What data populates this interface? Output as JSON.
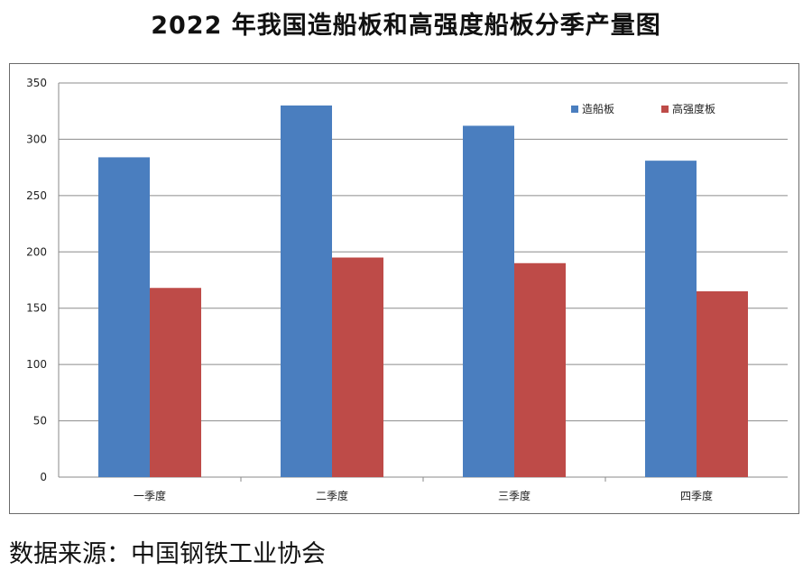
{
  "title": "2022 年我国造船板和高强度船板分季产量图",
  "source": "数据来源：中国钢铁工业协会",
  "chart_data": {
    "type": "bar",
    "categories": [
      "一季度",
      "二季度",
      "三季度",
      "四季度"
    ],
    "series": [
      {
        "name": "造船板",
        "color": "#4a7ebf",
        "values": [
          284,
          330,
          312,
          281
        ]
      },
      {
        "name": "高强度板",
        "color": "#be4b48",
        "values": [
          168,
          195,
          190,
          165
        ]
      }
    ],
    "ylim": [
      0,
      350
    ],
    "yticks": [
      0,
      50,
      100,
      150,
      200,
      250,
      300,
      350
    ],
    "grid": true,
    "legend": "top-right",
    "xlabel": "",
    "ylabel": ""
  }
}
